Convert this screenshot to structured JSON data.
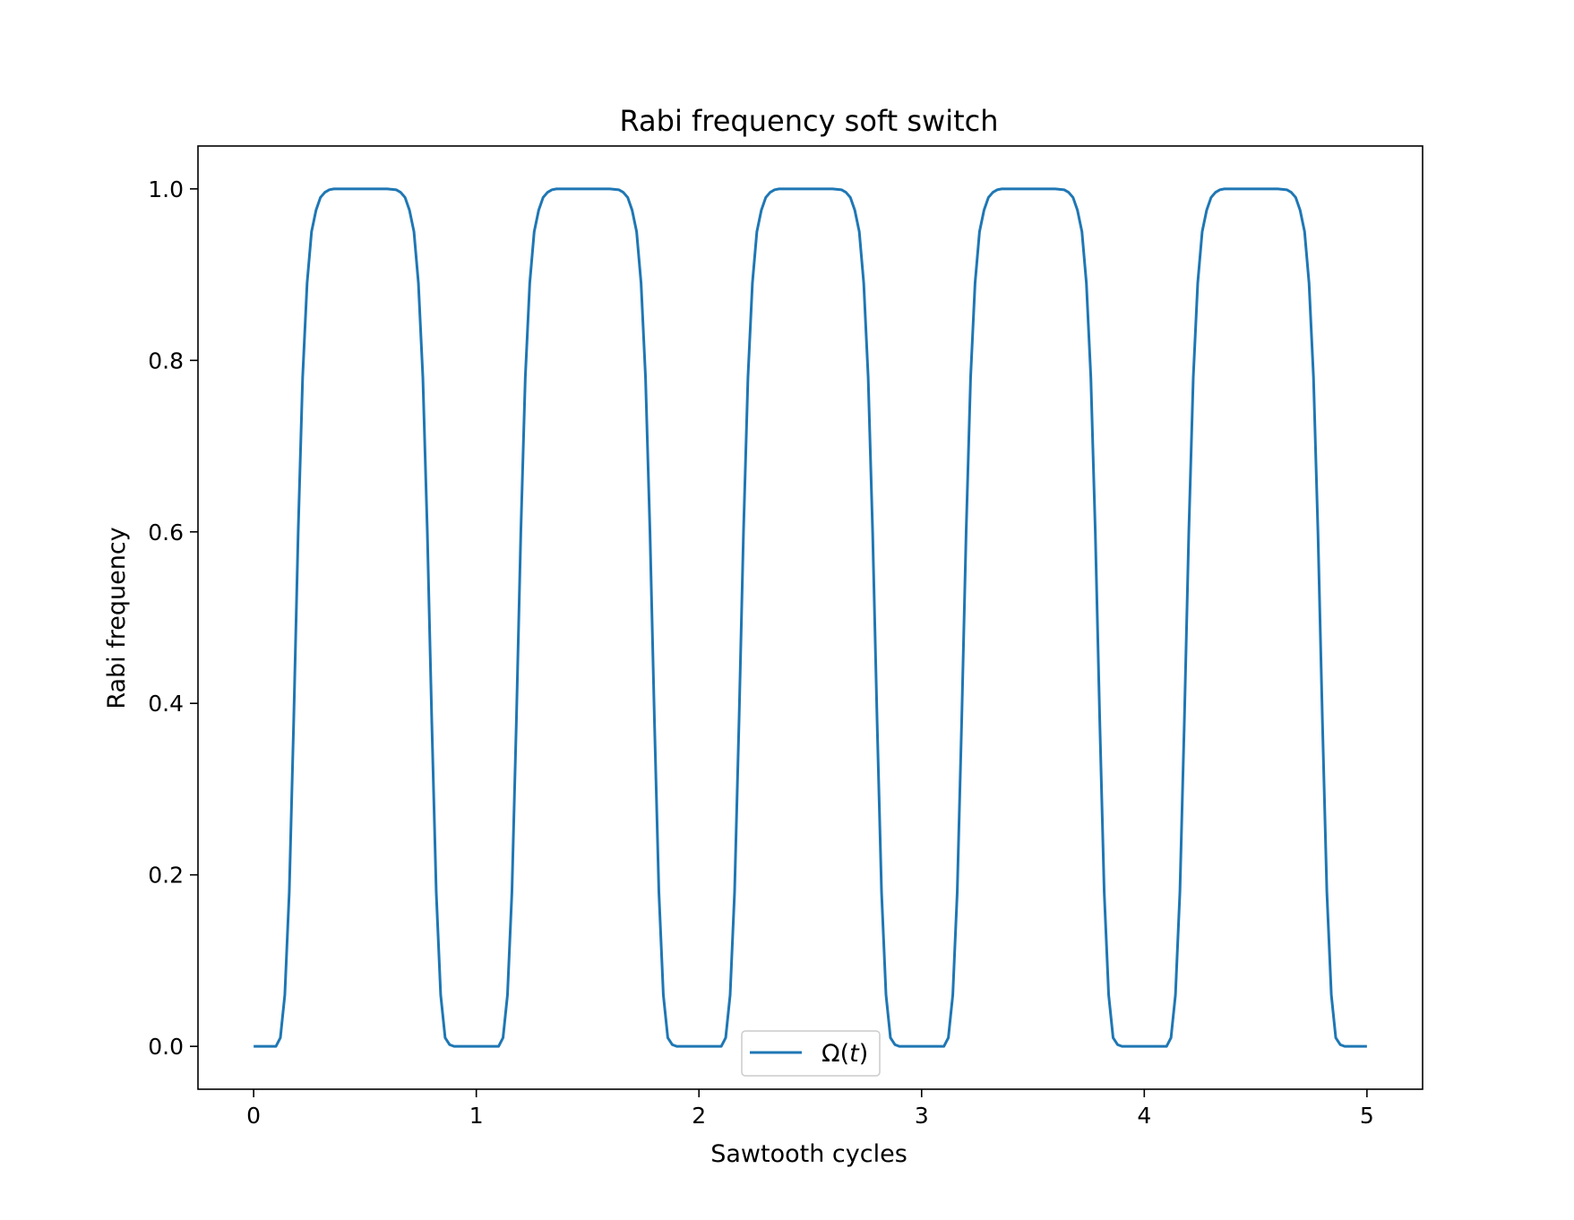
{
  "chart_data": {
    "type": "line",
    "title": "Rabi frequency soft switch",
    "xlabel": "Sawtooth cycles",
    "ylabel": "Rabi frequency",
    "xlim": [
      -0.25,
      5.25
    ],
    "ylim": [
      -0.05,
      1.05
    ],
    "xticks": [
      {
        "value": 0,
        "label": "0"
      },
      {
        "value": 1,
        "label": "1"
      },
      {
        "value": 2,
        "label": "2"
      },
      {
        "value": 3,
        "label": "3"
      },
      {
        "value": 4,
        "label": "4"
      },
      {
        "value": 5,
        "label": "5"
      }
    ],
    "yticks": [
      {
        "value": 0.0,
        "label": "0.0"
      },
      {
        "value": 0.2,
        "label": "0.2"
      },
      {
        "value": 0.4,
        "label": "0.4"
      },
      {
        "value": 0.6,
        "label": "0.6"
      },
      {
        "value": 0.8,
        "label": "0.8"
      },
      {
        "value": 1.0,
        "label": "1.0"
      }
    ],
    "grid": false,
    "legend_position": "bottom-center",
    "series": [
      {
        "name": "Ω(t)",
        "legend_main": "Ω(",
        "legend_italic": "t",
        "legend_close": ")",
        "color": "#1f77b4",
        "x": [
          0.0,
          0.1,
          0.12,
          0.14,
          0.16,
          0.18,
          0.2,
          0.22,
          0.24,
          0.26,
          0.28,
          0.3,
          0.32,
          0.34,
          0.36,
          0.4,
          0.5,
          0.6,
          0.64,
          0.66,
          0.68,
          0.7,
          0.72,
          0.74,
          0.76,
          0.78,
          0.8,
          0.82,
          0.84,
          0.86,
          0.88,
          0.9,
          1.0,
          1.1,
          1.12,
          1.14,
          1.16,
          1.18,
          1.2,
          1.22,
          1.24,
          1.26,
          1.28,
          1.3,
          1.32,
          1.34,
          1.36,
          1.4,
          1.5,
          1.6,
          1.64,
          1.66,
          1.68,
          1.7,
          1.72,
          1.74,
          1.76,
          1.78,
          1.8,
          1.82,
          1.84,
          1.86,
          1.88,
          1.9,
          2.0,
          2.1,
          2.12,
          2.14,
          2.16,
          2.18,
          2.2,
          2.22,
          2.24,
          2.26,
          2.28,
          2.3,
          2.32,
          2.34,
          2.36,
          2.4,
          2.5,
          2.6,
          2.64,
          2.66,
          2.68,
          2.7,
          2.72,
          2.74,
          2.76,
          2.78,
          2.8,
          2.82,
          2.84,
          2.86,
          2.88,
          2.9,
          3.0,
          3.1,
          3.12,
          3.14,
          3.16,
          3.18,
          3.2,
          3.22,
          3.24,
          3.26,
          3.28,
          3.3,
          3.32,
          3.34,
          3.36,
          3.4,
          3.5,
          3.6,
          3.64,
          3.66,
          3.68,
          3.7,
          3.72,
          3.74,
          3.76,
          3.78,
          3.8,
          3.82,
          3.84,
          3.86,
          3.88,
          3.9,
          4.0,
          4.1,
          4.12,
          4.14,
          4.16,
          4.18,
          4.2,
          4.22,
          4.24,
          4.26,
          4.28,
          4.3,
          4.32,
          4.34,
          4.36,
          4.4,
          4.5,
          4.6,
          4.64,
          4.66,
          4.68,
          4.7,
          4.72,
          4.74,
          4.76,
          4.78,
          4.8,
          4.82,
          4.84,
          4.86,
          4.88,
          4.9,
          5.0
        ],
        "y": [
          0.0,
          0.0,
          0.01,
          0.06,
          0.18,
          0.38,
          0.6,
          0.78,
          0.89,
          0.95,
          0.975,
          0.99,
          0.996,
          0.999,
          1.0,
          1.0,
          1.0,
          1.0,
          0.999,
          0.996,
          0.99,
          0.975,
          0.95,
          0.89,
          0.78,
          0.6,
          0.38,
          0.18,
          0.06,
          0.01,
          0.002,
          0.0,
          0.0,
          0.0,
          0.01,
          0.06,
          0.18,
          0.38,
          0.6,
          0.78,
          0.89,
          0.95,
          0.975,
          0.99,
          0.996,
          0.999,
          1.0,
          1.0,
          1.0,
          1.0,
          0.999,
          0.996,
          0.99,
          0.975,
          0.95,
          0.89,
          0.78,
          0.6,
          0.38,
          0.18,
          0.06,
          0.01,
          0.002,
          0.0,
          0.0,
          0.0,
          0.01,
          0.06,
          0.18,
          0.38,
          0.6,
          0.78,
          0.89,
          0.95,
          0.975,
          0.99,
          0.996,
          0.999,
          1.0,
          1.0,
          1.0,
          1.0,
          0.999,
          0.996,
          0.99,
          0.975,
          0.95,
          0.89,
          0.78,
          0.6,
          0.38,
          0.18,
          0.06,
          0.01,
          0.002,
          0.0,
          0.0,
          0.0,
          0.01,
          0.06,
          0.18,
          0.38,
          0.6,
          0.78,
          0.89,
          0.95,
          0.975,
          0.99,
          0.996,
          0.999,
          1.0,
          1.0,
          1.0,
          1.0,
          0.999,
          0.996,
          0.99,
          0.975,
          0.95,
          0.89,
          0.78,
          0.6,
          0.38,
          0.18,
          0.06,
          0.01,
          0.002,
          0.0,
          0.0,
          0.0,
          0.01,
          0.06,
          0.18,
          0.38,
          0.6,
          0.78,
          0.89,
          0.95,
          0.975,
          0.99,
          0.996,
          0.999,
          1.0,
          1.0,
          1.0,
          1.0,
          0.999,
          0.996,
          0.99,
          0.975,
          0.95,
          0.89,
          0.78,
          0.6,
          0.38,
          0.18,
          0.06,
          0.01,
          0.002,
          0.0,
          0.0
        ]
      }
    ]
  }
}
